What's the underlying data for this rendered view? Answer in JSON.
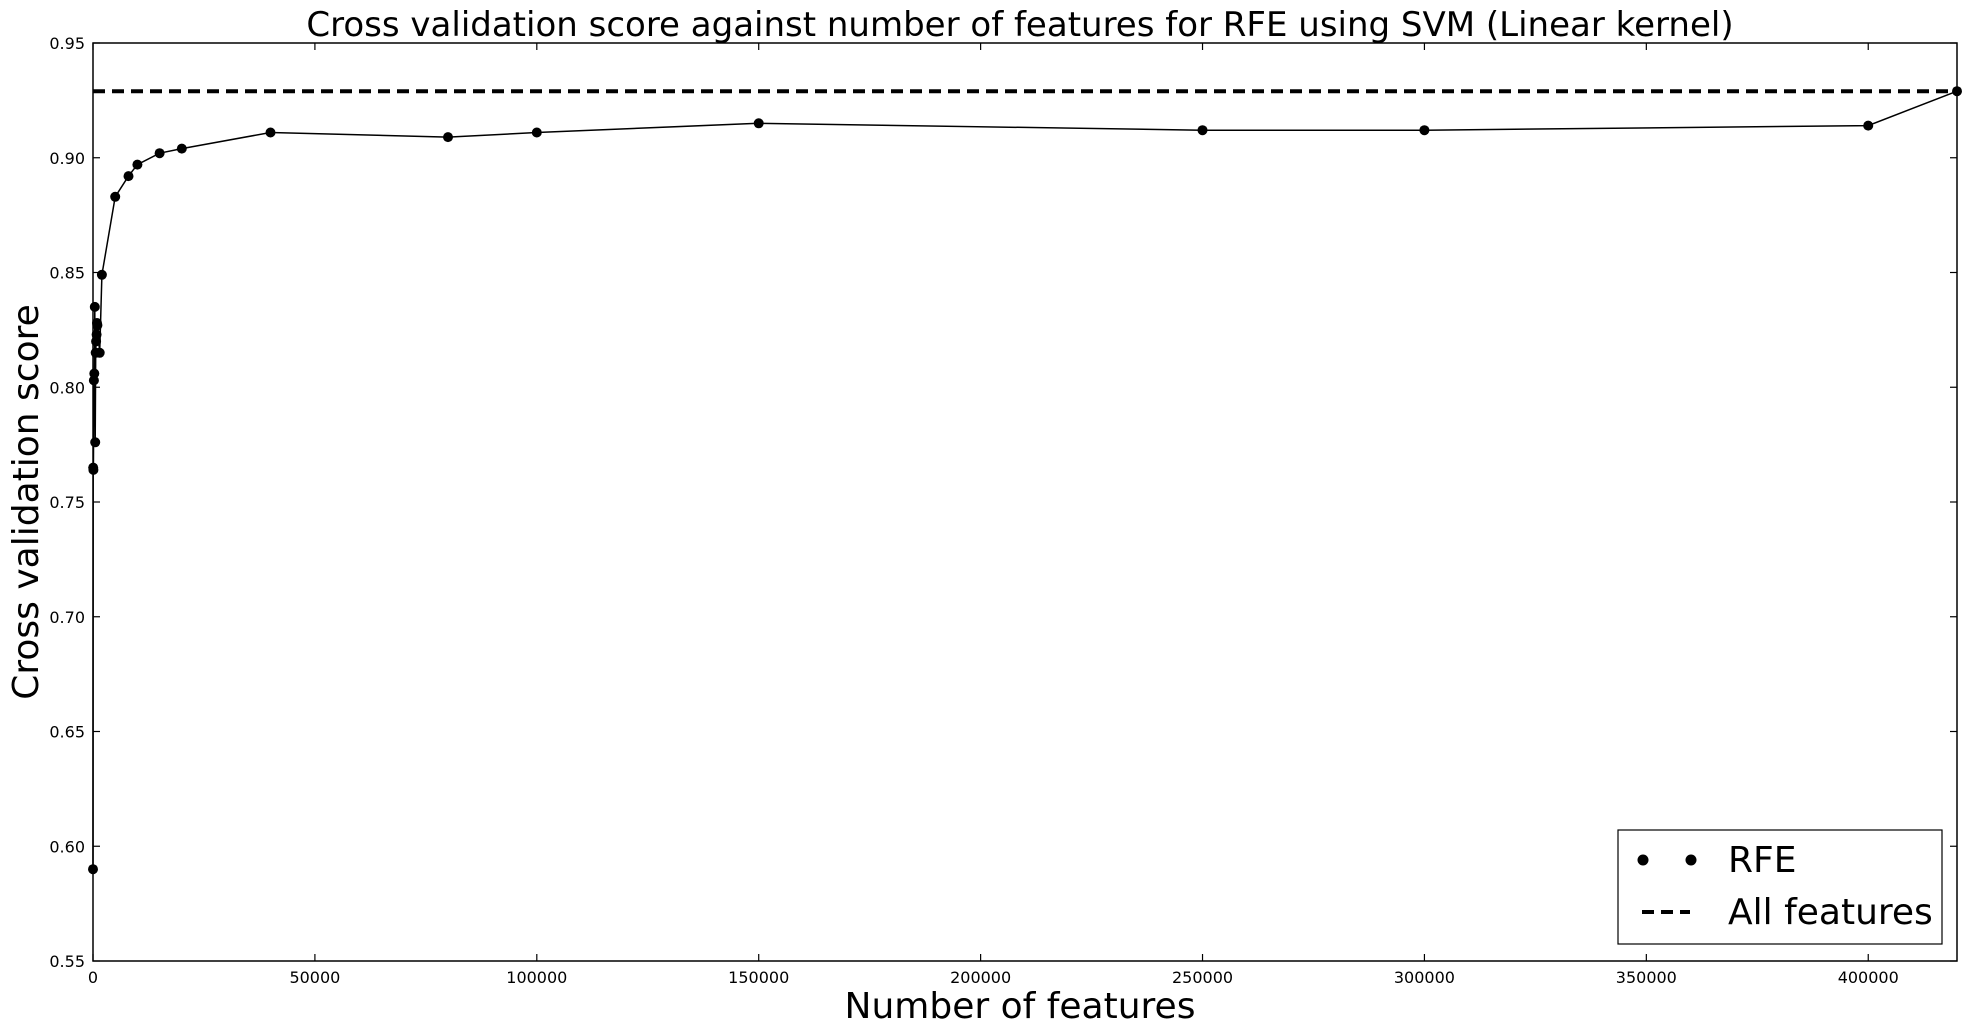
{
  "chart_data": {
    "type": "line",
    "title": "Cross validation score against number of features for RFE using SVM (Linear kernel)",
    "xlabel": "Number of features",
    "ylabel": "Cross validation score",
    "xlim": [
      0,
      420000
    ],
    "ylim": [
      0.55,
      0.95
    ],
    "xticks": [
      0,
      50000,
      100000,
      150000,
      200000,
      250000,
      300000,
      350000,
      400000
    ],
    "yticks": [
      0.55,
      0.6,
      0.65,
      0.7,
      0.75,
      0.8,
      0.85,
      0.9,
      0.95
    ],
    "xtick_labels": [
      "0",
      "50000",
      "100000",
      "150000",
      "200000",
      "250000",
      "300000",
      "350000",
      "400000"
    ],
    "ytick_labels": [
      "0.55",
      "0.60",
      "0.65",
      "0.70",
      "0.75",
      "0.80",
      "0.85",
      "0.90",
      "0.95"
    ],
    "grid": false,
    "legend_position": "bottom-right",
    "series": [
      {
        "name": "RFE",
        "style": "line-with-markers",
        "color": "#000000",
        "x": [
          10,
          50,
          100,
          200,
          300,
          400,
          500,
          600,
          700,
          800,
          900,
          1000,
          1500,
          2000,
          5000,
          8000,
          10000,
          15000,
          20000,
          40000,
          80000,
          100000,
          150000,
          250000,
          300000,
          400000,
          420000
        ],
        "y": [
          0.59,
          0.765,
          0.764,
          0.803,
          0.806,
          0.835,
          0.776,
          0.815,
          0.82,
          0.823,
          0.828,
          0.827,
          0.815,
          0.849,
          0.883,
          0.892,
          0.897,
          0.902,
          0.904,
          0.911,
          0.909,
          0.911,
          0.915,
          0.912,
          0.912,
          0.914,
          0.929
        ]
      },
      {
        "name": "All features",
        "style": "dashed",
        "color": "#000000",
        "x": [
          0,
          420000
        ],
        "y": [
          0.929,
          0.929
        ]
      }
    ]
  }
}
